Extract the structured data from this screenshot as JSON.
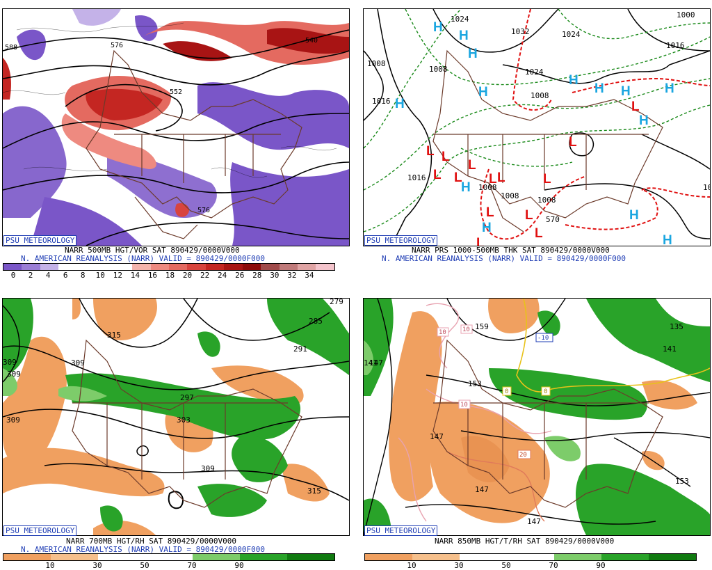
{
  "panels": {
    "tl": {
      "badge": "PSU METEOROLOGY",
      "caption1": "NARR 500MB HGT/VOR SAT 890429/0000V000",
      "caption2": "N. AMERICAN REANALYSIS (NARR) VALID = 890429/0000F000",
      "colorbar": {
        "ticks": [
          "0",
          "2",
          "4",
          "6",
          "8",
          "10",
          "12",
          "14",
          "16",
          "18",
          "20",
          "22",
          "24",
          "26",
          "28",
          "30",
          "32",
          "34"
        ],
        "colors": [
          "#7a56c8",
          "#9a7ed6",
          "#c4b2e8",
          "#ffffff",
          "#ffffff",
          "#ffffff",
          "#ffffff",
          "#f4b4ac",
          "#ee8a80",
          "#e46a60",
          "#d8443e",
          "#c42622",
          "#a81414",
          "#8c0a0a",
          "#a04a4a",
          "#c07a7a",
          "#e0a4a4",
          "#f4c4cc"
        ]
      },
      "labels": [
        "576",
        "588",
        "540",
        "552",
        "576"
      ]
    },
    "tr": {
      "badge": "PSU METEOROLOGY",
      "caption1": "NARR PRS 1000-500MB THK SAT 890429/0000V000",
      "caption2": "N. AMERICAN REANALYSIS (NARR) VALID = 890429/0000F000",
      "labels": [
        "1024",
        "1032",
        "1024",
        "1008",
        "1008",
        "1016",
        "1024",
        "1016",
        "1008",
        "1008",
        "570",
        "1008",
        "1016",
        "1008",
        "1000",
        "10"
      ],
      "highs": "H",
      "lows": "L"
    },
    "bl": {
      "badge": "PSU METEOROLOGY",
      "caption1": "NARR 700MB HGT/RH SAT 890429/0000V000",
      "caption2": "N. AMERICAN REANALYSIS (NARR) VALID = 890429/0000F000",
      "colorbar": {
        "ticks": [
          "10",
          "30",
          "50",
          "70",
          "90"
        ],
        "colors": [
          "#f0a060",
          "#f6c08c",
          "#ffffff",
          "#ffffff",
          "#7dcc6a",
          "#29a329",
          "#107a10"
        ]
      },
      "labels": [
        "315",
        "309",
        "309",
        "297",
        "285",
        "291",
        "303",
        "309",
        "315",
        "309",
        "309",
        "279"
      ]
    },
    "br": {
      "badge": "PSU METEOROLOGY",
      "caption1": "NARR 850MB HGT/T/RH SAT 890429/0000V000",
      "caption2": "",
      "colorbar": {
        "ticks": [
          "10",
          "30",
          "50",
          "70",
          "90"
        ],
        "colors": [
          "#f0a060",
          "#f6c08c",
          "#ffffff",
          "#ffffff",
          "#7dcc6a",
          "#29a329",
          "#107a10"
        ]
      },
      "labels": [
        "159",
        "153",
        "147",
        "147",
        "141",
        "135",
        "147",
        "141",
        "153",
        "147",
        "10",
        "10",
        "10",
        "0",
        "0",
        "20",
        "-10"
      ]
    }
  },
  "colors": {
    "badge": "#1e3cb4",
    "caption_blue": "#1e3cb4",
    "border": "#6b3a2a",
    "contour": "#000000",
    "thickness_dash": "#1a8a1a",
    "thickness_red": "#e01010",
    "high_marker": "#1aa6e0",
    "low_marker": "#e01010",
    "vor_pos": "#d8443e",
    "vor_neg": "#7a56c8",
    "rh_dry": "#f0a060",
    "rh_moist": "#29a329"
  }
}
